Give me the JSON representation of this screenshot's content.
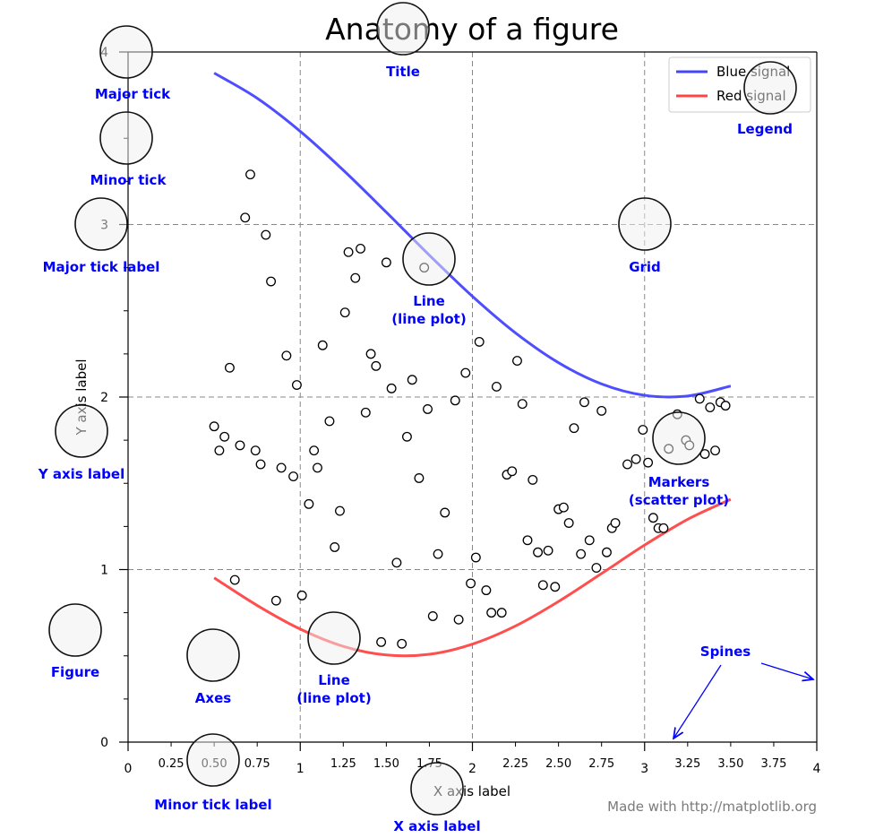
{
  "chart_data": {
    "type": "line",
    "title": "Anatomy of a figure",
    "xlabel": "X axis label",
    "ylabel": "Y axis label",
    "xlim": [
      0,
      4
    ],
    "ylim": [
      0,
      4
    ],
    "grid": true,
    "legend_position": "top-right",
    "x_major_ticks": [
      "0",
      "1",
      "2",
      "3",
      "4"
    ],
    "x_minor_tick_labels": [
      "0.25",
      "0.50",
      "0.75",
      "1.25",
      "1.50",
      "1.75",
      "2.25",
      "2.50",
      "2.75",
      "3.25",
      "3.50",
      "3.75"
    ],
    "y_major_ticks": [
      "0",
      "1",
      "2",
      "3",
      "4"
    ],
    "series": [
      {
        "name": "Blue signal",
        "color": "#4444ff",
        "kind": "line",
        "x": [
          0.5,
          0.75,
          1,
          1.25,
          1.5,
          1.75,
          2,
          2.25,
          2.5,
          2.75,
          3,
          3.25,
          3.5
        ],
        "y": [
          3.878,
          3.732,
          3.54,
          3.315,
          3.071,
          2.822,
          2.584,
          2.372,
          2.199,
          2.076,
          2.01,
          2.006,
          2.064
        ]
      },
      {
        "name": "Red signal",
        "color": "#ff4444",
        "kind": "line",
        "x": [
          0.5,
          0.75,
          1,
          1.25,
          1.5,
          1.75,
          2,
          2.25,
          2.5,
          2.75,
          3,
          3.25,
          3.5
        ],
        "y": [
          0.952,
          0.792,
          0.655,
          0.555,
          0.505,
          0.509,
          0.568,
          0.673,
          0.815,
          0.977,
          1.142,
          1.291,
          1.407
        ]
      },
      {
        "kind": "scatter",
        "color": "#000000",
        "points": [
          [
            0.71,
            3.29
          ],
          [
            0.68,
            3.04
          ],
          [
            0.8,
            2.94
          ],
          [
            0.83,
            2.67
          ],
          [
            0.59,
            2.17
          ],
          [
            0.5,
            1.83
          ],
          [
            0.56,
            1.77
          ],
          [
            0.53,
            1.69
          ],
          [
            0.65,
            1.72
          ],
          [
            0.74,
            1.69
          ],
          [
            0.77,
            1.61
          ],
          [
            0.62,
            0.94
          ],
          [
            0.86,
            0.82
          ],
          [
            0.89,
            1.59
          ],
          [
            0.96,
            1.54
          ],
          [
            0.92,
            2.24
          ],
          [
            0.98,
            2.07
          ],
          [
            1.01,
            0.85
          ],
          [
            1.05,
            1.38
          ],
          [
            1.08,
            1.69
          ],
          [
            1.1,
            1.59
          ],
          [
            1.13,
            2.3
          ],
          [
            1.17,
            1.86
          ],
          [
            1.2,
            1.13
          ],
          [
            1.23,
            1.34
          ],
          [
            1.26,
            2.49
          ],
          [
            1.28,
            2.84
          ],
          [
            1.32,
            2.69
          ],
          [
            1.35,
            2.86
          ],
          [
            1.38,
            1.91
          ],
          [
            1.41,
            2.25
          ],
          [
            1.44,
            2.18
          ],
          [
            1.47,
            0.58
          ],
          [
            1.5,
            2.78
          ],
          [
            1.53,
            2.05
          ],
          [
            1.56,
            1.04
          ],
          [
            1.59,
            0.57
          ],
          [
            1.62,
            1.77
          ],
          [
            1.65,
            2.1
          ],
          [
            1.69,
            1.53
          ],
          [
            1.72,
            2.75
          ],
          [
            1.74,
            1.93
          ],
          [
            1.77,
            0.73
          ],
          [
            1.8,
            1.09
          ],
          [
            1.84,
            1.33
          ],
          [
            1.9,
            1.98
          ],
          [
            1.92,
            0.71
          ],
          [
            1.96,
            2.14
          ],
          [
            1.99,
            0.92
          ],
          [
            2.02,
            1.07
          ],
          [
            2.04,
            2.32
          ],
          [
            2.08,
            0.88
          ],
          [
            2.11,
            0.75
          ],
          [
            2.14,
            2.06
          ],
          [
            2.17,
            0.75
          ],
          [
            2.2,
            1.55
          ],
          [
            2.23,
            1.57
          ],
          [
            2.26,
            2.21
          ],
          [
            2.29,
            1.96
          ],
          [
            2.32,
            1.17
          ],
          [
            2.35,
            1.52
          ],
          [
            2.38,
            1.1
          ],
          [
            2.41,
            0.91
          ],
          [
            2.44,
            1.11
          ],
          [
            2.48,
            0.9
          ],
          [
            2.5,
            1.35
          ],
          [
            2.53,
            1.36
          ],
          [
            2.56,
            1.27
          ],
          [
            2.59,
            1.82
          ],
          [
            2.63,
            1.09
          ],
          [
            2.65,
            1.97
          ],
          [
            2.68,
            1.17
          ],
          [
            2.72,
            1.01
          ],
          [
            2.75,
            1.92
          ],
          [
            2.78,
            1.1
          ],
          [
            2.81,
            1.24
          ],
          [
            2.83,
            1.27
          ],
          [
            2.9,
            1.61
          ],
          [
            2.95,
            1.64
          ],
          [
            2.99,
            1.81
          ],
          [
            3.02,
            1.62
          ],
          [
            3.05,
            1.3
          ],
          [
            3.08,
            1.24
          ],
          [
            3.11,
            1.24
          ],
          [
            3.14,
            1.7
          ],
          [
            3.19,
            1.9
          ],
          [
            3.24,
            1.75
          ],
          [
            3.26,
            1.72
          ],
          [
            3.32,
            1.99
          ],
          [
            3.35,
            1.67
          ],
          [
            3.38,
            1.94
          ],
          [
            3.41,
            1.69
          ],
          [
            3.44,
            1.97
          ],
          [
            3.47,
            1.95
          ]
        ]
      }
    ],
    "annotations": [
      "Major tick",
      "Minor tick",
      "Major tick label",
      "Title",
      "Legend",
      "Grid",
      "Line\n(line plot)",
      "Y axis label",
      "Markers\n(scatter plot)",
      "Figure",
      "Axes",
      "Line\n(line plot)",
      "Minor tick label",
      "X axis label",
      "Spines"
    ],
    "annotation_color": "#0000ff",
    "footer": "Made with http://matplotlib.org"
  }
}
